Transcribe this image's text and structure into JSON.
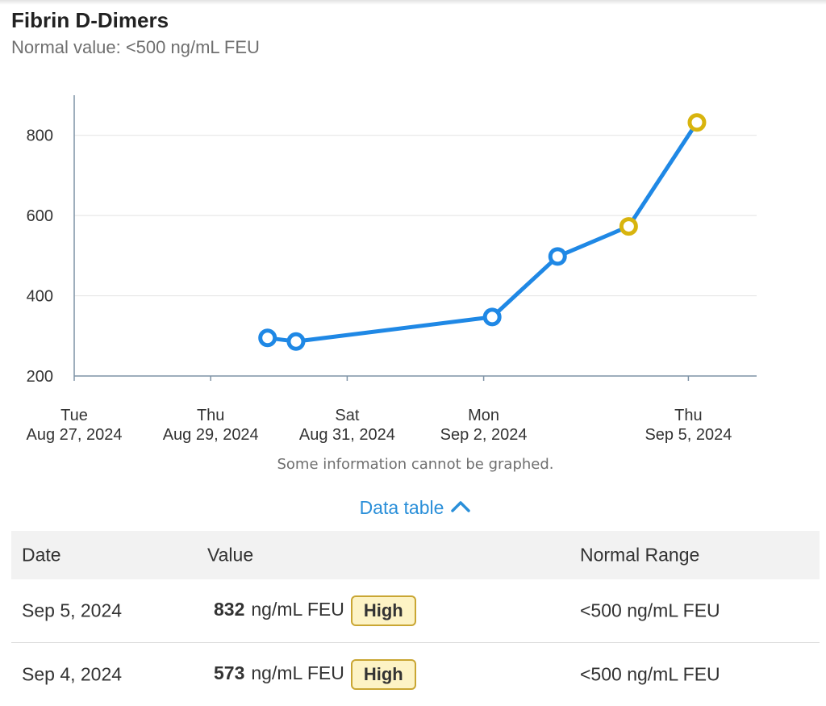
{
  "header": {
    "title": "Fibrin D-Dimers",
    "subtitle": "Normal value: <500 ng/mL FEU"
  },
  "chart_data": {
    "type": "line",
    "xlabel": "",
    "ylabel": "",
    "ylim": [
      200,
      900
    ],
    "yticks": [
      200,
      400,
      600,
      800
    ],
    "xticks": [
      {
        "date": "2024-08-27",
        "line1": "Tue",
        "line2": "Aug 27, 2024"
      },
      {
        "date": "2024-08-29",
        "line1": "Thu",
        "line2": "Aug 29, 2024"
      },
      {
        "date": "2024-08-31",
        "line1": "Sat",
        "line2": "Aug 31, 2024"
      },
      {
        "date": "2024-09-02",
        "line1": "Mon",
        "line2": "Sep 2, 2024"
      },
      {
        "date": "2024-09-05",
        "line1": "Thu",
        "line2": "Sep 5, 2024"
      }
    ],
    "xlim": [
      "2024-08-27",
      "2024-09-06"
    ],
    "grid": "horizontal",
    "series": [
      {
        "color": "#1f88e5",
        "points": [
          {
            "x": "2024-08-29T20:00",
            "y": 295,
            "flag": "normal"
          },
          {
            "x": "2024-08-30T06:00",
            "y": 286,
            "flag": "normal"
          },
          {
            "x": "2024-09-02T03:00",
            "y": 347,
            "flag": "normal"
          },
          {
            "x": "2024-09-03T02:00",
            "y": 498,
            "flag": "normal"
          },
          {
            "x": "2024-09-04T03:00",
            "y": 573,
            "flag": "high"
          },
          {
            "x": "2024-09-05T03:00",
            "y": 832,
            "flag": "high"
          }
        ]
      }
    ],
    "colors": {
      "normal": "#1f88e5",
      "high": "#d8b40e",
      "axis": "#7f93a6",
      "grid": "#e3e3e3"
    },
    "note": "Some information cannot be graphed."
  },
  "data_table": {
    "toggle_label": "Data table",
    "headers": {
      "date": "Date",
      "value": "Value",
      "range": "Normal Range"
    },
    "rows": [
      {
        "date": "Sep 5, 2024",
        "value": "832",
        "unit": "ng/mL FEU",
        "flag": "High",
        "range": "<500 ng/mL FEU"
      },
      {
        "date": "Sep 4, 2024",
        "value": "573",
        "unit": "ng/mL FEU",
        "flag": "High",
        "range": "<500 ng/mL FEU"
      }
    ]
  }
}
